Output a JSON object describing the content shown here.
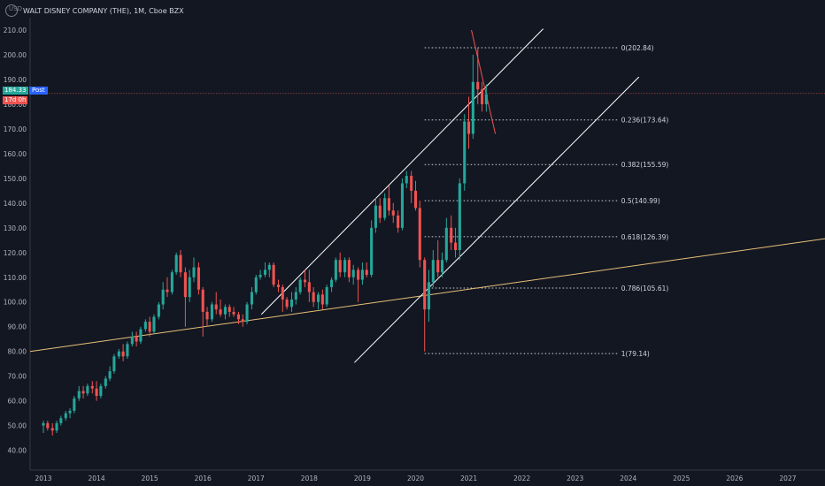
{
  "title": "WALT DISNEY COMPANY (THE), 1M, Cboe BZX",
  "currency_label": "USD",
  "price_badge": "184.33",
  "post_badge": "Post",
  "time_badge": "17d 0h",
  "colors": {
    "background": "#131722",
    "up": "#26a69a",
    "down": "#ef5350",
    "trend_support": "#e8c077",
    "channel": "#ffffff",
    "red_line": "#ef5350",
    "price_line": "#ef5350"
  },
  "chart_data": {
    "type": "candlestick",
    "y_axis": {
      "ticks": [
        "40.00",
        "50.00",
        "60.00",
        "70.00",
        "80.00",
        "90.00",
        "100.00",
        "110.00",
        "120.00",
        "130.00",
        "140.00",
        "150.00",
        "160.00",
        "170.00",
        "180.00",
        "190.00",
        "200.00",
        "210.00"
      ],
      "min": 32,
      "max": 215
    },
    "x_axis": {
      "ticks": [
        "2013",
        "2014",
        "2015",
        "2016",
        "2017",
        "2018",
        "2019",
        "2020",
        "2021",
        "2022",
        "2023",
        "2024",
        "2025",
        "2026",
        "2027"
      ],
      "min": 2012.75,
      "max": 2027.7
    },
    "fib_levels": [
      {
        "label": "0(202.84)",
        "value": 202.84
      },
      {
        "label": "0.236(173.64)",
        "value": 173.64
      },
      {
        "label": "0.382(155.59)",
        "value": 155.59
      },
      {
        "label": "0.5(140.99)",
        "value": 140.99
      },
      {
        "label": "0.618(126.39)",
        "value": 126.39
      },
      {
        "label": "0.786(105.61)",
        "value": 105.61
      },
      {
        "label": "1(79.14)",
        "value": 79.14
      }
    ],
    "last_price": 184.33,
    "candles": [
      [
        2013.0,
        50,
        52,
        47,
        51
      ],
      [
        2013.08,
        51,
        52,
        48,
        49
      ],
      [
        2013.17,
        49,
        51,
        46,
        48
      ],
      [
        2013.25,
        48,
        52,
        47,
        51
      ],
      [
        2013.33,
        51,
        54,
        50,
        53
      ],
      [
        2013.42,
        53,
        56,
        52,
        55
      ],
      [
        2013.5,
        55,
        57,
        53,
        56
      ],
      [
        2013.58,
        56,
        62,
        55,
        61
      ],
      [
        2013.67,
        61,
        66,
        60,
        64
      ],
      [
        2013.75,
        64,
        66,
        61,
        63
      ],
      [
        2013.83,
        63,
        67,
        62,
        66
      ],
      [
        2013.92,
        66,
        68,
        63,
        65
      ],
      [
        2014.0,
        65,
        68,
        60,
        62
      ],
      [
        2014.08,
        62,
        67,
        61,
        66
      ],
      [
        2014.17,
        66,
        70,
        65,
        69
      ],
      [
        2014.25,
        69,
        74,
        68,
        72
      ],
      [
        2014.33,
        72,
        79,
        71,
        78
      ],
      [
        2014.42,
        78,
        81,
        77,
        80
      ],
      [
        2014.5,
        80,
        83,
        76,
        78
      ],
      [
        2014.58,
        78,
        84,
        77,
        83
      ],
      [
        2014.67,
        83,
        88,
        82,
        86
      ],
      [
        2014.75,
        86,
        88,
        82,
        84
      ],
      [
        2014.83,
        84,
        90,
        83,
        89
      ],
      [
        2014.92,
        89,
        93,
        88,
        92
      ],
      [
        2015.0,
        92,
        94,
        86,
        88
      ],
      [
        2015.08,
        88,
        95,
        87,
        94
      ],
      [
        2015.17,
        94,
        100,
        93,
        99
      ],
      [
        2015.25,
        99,
        108,
        97,
        105
      ],
      [
        2015.33,
        105,
        110,
        102,
        104
      ],
      [
        2015.42,
        104,
        113,
        103,
        112
      ],
      [
        2015.5,
        112,
        120,
        111,
        119
      ],
      [
        2015.58,
        119,
        121,
        110,
        112
      ],
      [
        2015.67,
        112,
        114,
        90,
        102
      ],
      [
        2015.75,
        102,
        113,
        100,
        110
      ],
      [
        2015.83,
        110,
        118,
        108,
        114
      ],
      [
        2015.92,
        114,
        116,
        103,
        105
      ],
      [
        2016.0,
        105,
        106,
        86,
        96
      ],
      [
        2016.08,
        96,
        98,
        90,
        93
      ],
      [
        2016.17,
        93,
        100,
        92,
        99
      ],
      [
        2016.25,
        99,
        104,
        95,
        97
      ],
      [
        2016.33,
        97,
        101,
        94,
        95
      ],
      [
        2016.42,
        95,
        99,
        93,
        98
      ],
      [
        2016.5,
        98,
        99,
        94,
        96
      ],
      [
        2016.58,
        96,
        98,
        94,
        95
      ],
      [
        2016.67,
        95,
        96,
        91,
        93
      ],
      [
        2016.75,
        93,
        95,
        90,
        92
      ],
      [
        2016.83,
        92,
        100,
        91,
        99
      ],
      [
        2016.92,
        99,
        106,
        97,
        104
      ],
      [
        2017.0,
        104,
        111,
        103,
        110
      ],
      [
        2017.08,
        110,
        113,
        109,
        111
      ],
      [
        2017.17,
        111,
        116,
        110,
        113
      ],
      [
        2017.25,
        113,
        116,
        110,
        115
      ],
      [
        2017.33,
        115,
        116,
        106,
        107
      ],
      [
        2017.42,
        107,
        109,
        104,
        106
      ],
      [
        2017.5,
        106,
        107,
        96,
        101
      ],
      [
        2017.58,
        101,
        102,
        97,
        98
      ],
      [
        2017.67,
        98,
        104,
        96,
        101
      ],
      [
        2017.75,
        101,
        106,
        99,
        104
      ],
      [
        2017.83,
        104,
        110,
        103,
        109
      ],
      [
        2017.92,
        109,
        113,
        106,
        108
      ],
      [
        2018.0,
        108,
        113,
        100,
        104
      ],
      [
        2018.08,
        104,
        106,
        98,
        100
      ],
      [
        2018.17,
        100,
        104,
        97,
        103
      ],
      [
        2018.25,
        103,
        105,
        97,
        99
      ],
      [
        2018.33,
        99,
        107,
        98,
        106
      ],
      [
        2018.42,
        106,
        110,
        104,
        109
      ],
      [
        2018.5,
        109,
        118,
        108,
        117
      ],
      [
        2018.58,
        117,
        120,
        110,
        112
      ],
      [
        2018.67,
        112,
        118,
        110,
        117
      ],
      [
        2018.75,
        117,
        118,
        108,
        110
      ],
      [
        2018.83,
        110,
        115,
        107,
        113
      ],
      [
        2018.92,
        113,
        114,
        100,
        109
      ],
      [
        2019.0,
        109,
        116,
        107,
        113
      ],
      [
        2019.08,
        113,
        116,
        110,
        111
      ],
      [
        2019.17,
        111,
        133,
        110,
        130
      ],
      [
        2019.25,
        130,
        142,
        128,
        139
      ],
      [
        2019.33,
        139,
        142,
        132,
        134
      ],
      [
        2019.42,
        134,
        144,
        133,
        142
      ],
      [
        2019.5,
        142,
        147,
        135,
        137
      ],
      [
        2019.58,
        137,
        140,
        132,
        135
      ],
      [
        2019.67,
        135,
        137,
        128,
        130
      ],
      [
        2019.75,
        130,
        150,
        129,
        148
      ],
      [
        2019.83,
        148,
        153,
        146,
        151
      ],
      [
        2019.92,
        151,
        153,
        140,
        145
      ],
      [
        2020.0,
        145,
        149,
        137,
        138
      ],
      [
        2020.08,
        138,
        141,
        114,
        117
      ],
      [
        2020.17,
        117,
        118,
        80,
        97
      ],
      [
        2020.25,
        97,
        113,
        92,
        108
      ],
      [
        2020.33,
        108,
        121,
        106,
        117
      ],
      [
        2020.42,
        117,
        125,
        110,
        112
      ],
      [
        2020.5,
        112,
        120,
        110,
        117
      ],
      [
        2020.58,
        117,
        134,
        116,
        130
      ],
      [
        2020.67,
        130,
        135,
        121,
        124
      ],
      [
        2020.75,
        124,
        130,
        118,
        121
      ],
      [
        2020.83,
        121,
        150,
        117,
        148
      ],
      [
        2020.92,
        148,
        176,
        145,
        173
      ],
      [
        2021.0,
        173,
        183,
        162,
        168
      ],
      [
        2021.08,
        168,
        200,
        166,
        189
      ],
      [
        2021.17,
        189,
        203,
        180,
        186
      ],
      [
        2021.25,
        186,
        189,
        177,
        180
      ],
      [
        2021.33,
        180,
        188,
        177,
        184
      ]
    ]
  }
}
